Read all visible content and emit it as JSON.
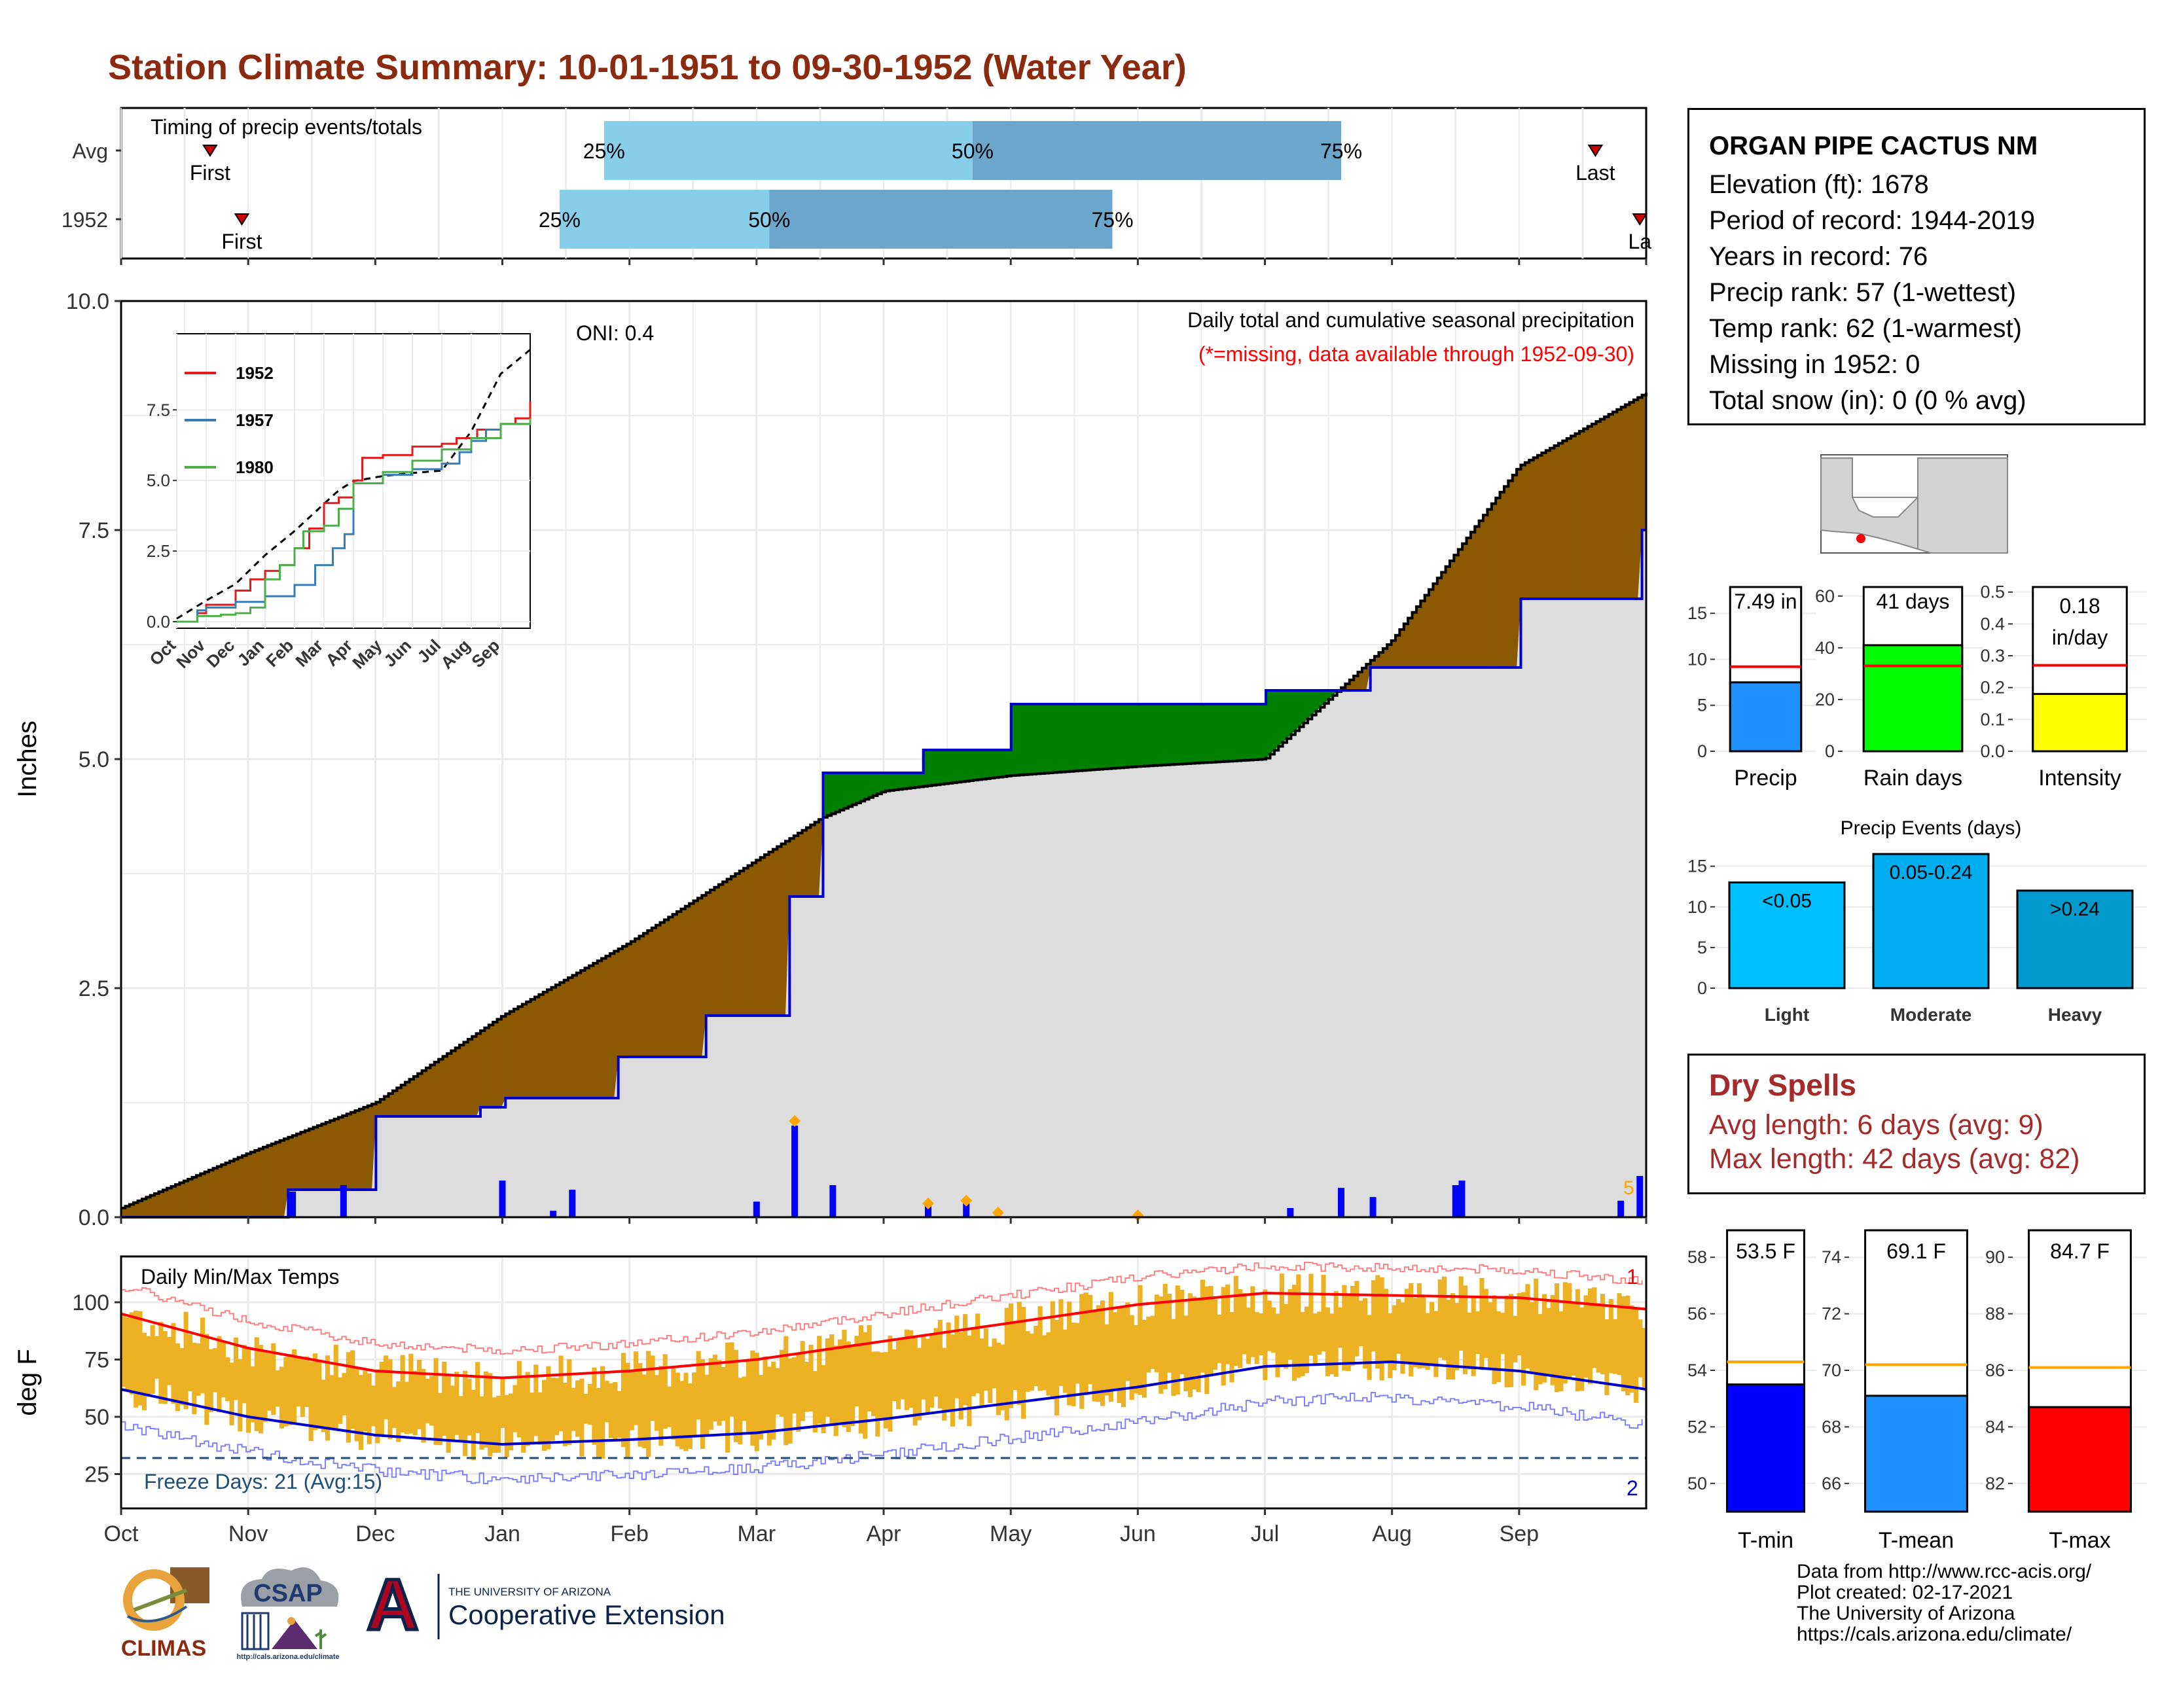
{
  "title": "Station Climate Summary: 10-01-1951 to 09-30-1952 (Water Year)",
  "colors": {
    "title": "#8B2A0E",
    "deficit_fill": "#8B5A00",
    "surplus_fill": "#008000",
    "current_line": "#0000CC",
    "avg_fill": "#DDDDDD",
    "quartile_light": "#87CEEB",
    "quartile_dark": "#6CA6CD",
    "temp_bar": "#EDB124",
    "tmax_line": "#FF0000",
    "tmin_line": "#0000CC",
    "dry_spells_text": "#A52A2A"
  },
  "timing_panel": {
    "label": "Timing of precip events/totals",
    "rows": [
      {
        "name": "Avg",
        "first_label": "First",
        "last_label": "Last",
        "q25_label": "25%",
        "q50_label": "50%",
        "q75_label": "75%"
      },
      {
        "name": "1952",
        "first_label": "First",
        "last_label": "La",
        "q25_label": "25%",
        "q50_label": "50%",
        "q75_label": "75%"
      }
    ]
  },
  "precip_panel": {
    "ylabel": "Inches",
    "oni_label": "ONI: 0.4",
    "subtitle": "Daily total and cumulative seasonal precipitation",
    "missing_note": "(*=missing, data available through 1952-09-30)",
    "y_ticks": [
      "0.0",
      "2.5",
      "5.0",
      "7.5",
      "10.0"
    ],
    "corner_count": "5"
  },
  "inset": {
    "y_ticks": [
      "0.0",
      "2.5",
      "5.0",
      "7.5"
    ],
    "x_ticks": [
      "Oct",
      "Nov",
      "Dec",
      "Jan",
      "Feb",
      "Mar",
      "Apr",
      "May",
      "Jun",
      "Jul",
      "Aug",
      "Sep"
    ],
    "legend": [
      {
        "name": "1952",
        "color": "#E41A1C"
      },
      {
        "name": "1957",
        "color": "#377EB8"
      },
      {
        "name": "1980",
        "color": "#4DAF4A"
      }
    ]
  },
  "temp_panel": {
    "ylabel": "deg F",
    "label": "Daily Min/Max Temps",
    "freeze_label": "Freeze Days: 21 (Avg:15)",
    "max_count": "1",
    "min_count": "2",
    "y_ticks": [
      "25",
      "50",
      "75",
      "100"
    ]
  },
  "x_axis_months": [
    "Oct",
    "Nov",
    "Dec",
    "Jan",
    "Feb",
    "Mar",
    "Apr",
    "May",
    "Jun",
    "Jul",
    "Aug",
    "Sep"
  ],
  "station": {
    "name": "ORGAN PIPE CACTUS NM",
    "lines": [
      "Elevation (ft): 1678",
      "Period of record: 1944-2019",
      "Years in record: 76",
      "Precip rank: 57 (1-wettest)",
      "Temp rank: 62 (1-warmest)",
      "Missing in 1952: 0",
      "Total snow (in): 0 (0 % avg)"
    ]
  },
  "summary_bars": [
    {
      "label": "Precip",
      "value_text": "7.49 in",
      "color": "#1E90FF",
      "y_ticks": [
        "0",
        "5",
        "10",
        "15"
      ]
    },
    {
      "label": "Rain days",
      "value_text": "41 days",
      "color": "#00FF00",
      "y_ticks": [
        "0",
        "20",
        "40",
        "60"
      ]
    },
    {
      "label": "Intensity",
      "value_text_1": "0.18",
      "value_text_2": "in/day",
      "color": "#FFFF00",
      "y_ticks": [
        "0.0",
        "0.1",
        "0.2",
        "0.3",
        "0.4",
        "0.5"
      ]
    }
  ],
  "precip_events": {
    "title": "Precip Events (days)",
    "y_ticks": [
      "0",
      "5",
      "10",
      "15"
    ],
    "bars": [
      {
        "category": "Light",
        "label": "<0.05",
        "color": "#00BFFF"
      },
      {
        "category": "Moderate",
        "label": "0.05-0.24",
        "color": "#00AEEF"
      },
      {
        "category": "Heavy",
        "label": ">0.24",
        "color": "#009ACD"
      }
    ]
  },
  "dry_spells": {
    "title": "Dry Spells",
    "avg_line": "Avg length: 6 days (avg: 9)",
    "max_line": "Max length: 42 days (avg: 82)"
  },
  "temp_bars": [
    {
      "label": "T-min",
      "value_text": "53.5 F",
      "color": "#0000FF",
      "y_ticks": [
        "50",
        "52",
        "54",
        "56",
        "58"
      ]
    },
    {
      "label": "T-mean",
      "value_text": "69.1 F",
      "color": "#1E90FF",
      "y_ticks": [
        "66",
        "68",
        "70",
        "72",
        "74"
      ]
    },
    {
      "label": "T-max",
      "value_text": "84.7 F",
      "color": "#FF0000",
      "y_ticks": [
        "82",
        "84",
        "86",
        "88",
        "90"
      ]
    }
  ],
  "credits": [
    "Data from http://www.rcc-acis.org/",
    "Plot created: 02-17-2021",
    "The University of Arizona",
    "https://cals.arizona.edu/climate/"
  ],
  "logos": {
    "climas": "CLIMAS",
    "csap": "CSAP",
    "csap_url": "http://cals.arizona.edu/climate",
    "ua_small": "THE UNIVERSITY OF ARIZONA",
    "ua_big": "Cooperative Extension",
    "ua_letter": "A"
  },
  "chart_data": [
    {
      "type": "area",
      "title": "Daily total and cumulative seasonal precipitation",
      "ylabel": "Inches",
      "ylim": [
        0,
        10
      ],
      "x_months": [
        "Oct",
        "Nov",
        "Dec",
        "Jan",
        "Feb",
        "Mar",
        "Apr",
        "May",
        "Jun",
        "Jul",
        "Aug",
        "Sep"
      ],
      "series": [
        {
          "name": "avg_cumulative",
          "x_month": [
            0,
            1,
            2,
            3,
            4,
            5,
            5.5,
            6,
            7,
            8,
            9,
            10,
            11,
            12
          ],
          "values": [
            0.1,
            0.7,
            1.25,
            2.2,
            3.0,
            3.9,
            4.35,
            4.65,
            4.82,
            4.92,
            5.0,
            6.3,
            8.2,
            9.0
          ]
        },
        {
          "name": "1952_cumulative",
          "x_month": [
            0,
            0.8,
            1.3,
            2.0,
            2.8,
            3.0,
            3.9,
            4.6,
            5.2,
            5.25,
            5.5,
            6.3,
            7.0,
            8.0,
            9.0,
            9.8,
            11.0,
            11.95,
            12
          ],
          "values": [
            0.0,
            0.0,
            0.3,
            1.1,
            1.2,
            1.3,
            1.75,
            2.2,
            2.2,
            3.5,
            4.85,
            5.1,
            5.6,
            5.6,
            5.75,
            6.0,
            6.75,
            7.5,
            7.5
          ]
        }
      ],
      "daily_bars": [
        {
          "x_month": 1.35,
          "value": 0.28
        },
        {
          "x_month": 1.75,
          "value": 0.35
        },
        {
          "x_month": 3.0,
          "value": 0.4
        },
        {
          "x_month": 3.4,
          "value": 0.07
        },
        {
          "x_month": 3.55,
          "value": 0.3
        },
        {
          "x_month": 5.0,
          "value": 0.17
        },
        {
          "x_month": 5.3,
          "value": 1.0
        },
        {
          "x_month": 5.6,
          "value": 0.35
        },
        {
          "x_month": 6.35,
          "value": 0.13
        },
        {
          "x_month": 6.65,
          "value": 0.18
        },
        {
          "x_month": 9.2,
          "value": 0.1
        },
        {
          "x_month": 9.6,
          "value": 0.32
        },
        {
          "x_month": 9.85,
          "value": 0.22
        },
        {
          "x_month": 10.5,
          "value": 0.35
        },
        {
          "x_month": 10.55,
          "value": 0.4
        },
        {
          "x_month": 11.8,
          "value": 0.18
        },
        {
          "x_month": 11.95,
          "value": 0.45
        }
      ]
    },
    {
      "type": "line",
      "title": "Daily Min/Max Temps",
      "ylabel": "deg F",
      "ylim": [
        10,
        120
      ],
      "x_months": [
        "Oct",
        "Nov",
        "Dec",
        "Jan",
        "Feb",
        "Mar",
        "Apr",
        "May",
        "Jun",
        "Jul",
        "Aug",
        "Sep"
      ],
      "series": [
        {
          "name": "avg_tmax",
          "x_month": [
            0,
            1,
            2,
            3,
            4,
            5,
            6,
            7,
            8,
            9,
            10,
            11,
            12
          ],
          "values": [
            95,
            80,
            70,
            67,
            70,
            75,
            83,
            91,
            99,
            104,
            103,
            102,
            97
          ]
        },
        {
          "name": "avg_tmin",
          "x_month": [
            0,
            1,
            2,
            3,
            4,
            5,
            6,
            7,
            8,
            9,
            10,
            11,
            12
          ],
          "values": [
            62,
            50,
            42,
            38,
            40,
            43,
            49,
            56,
            63,
            72,
            74,
            70,
            62
          ]
        }
      ],
      "freeze_threshold": 32
    }
  ]
}
